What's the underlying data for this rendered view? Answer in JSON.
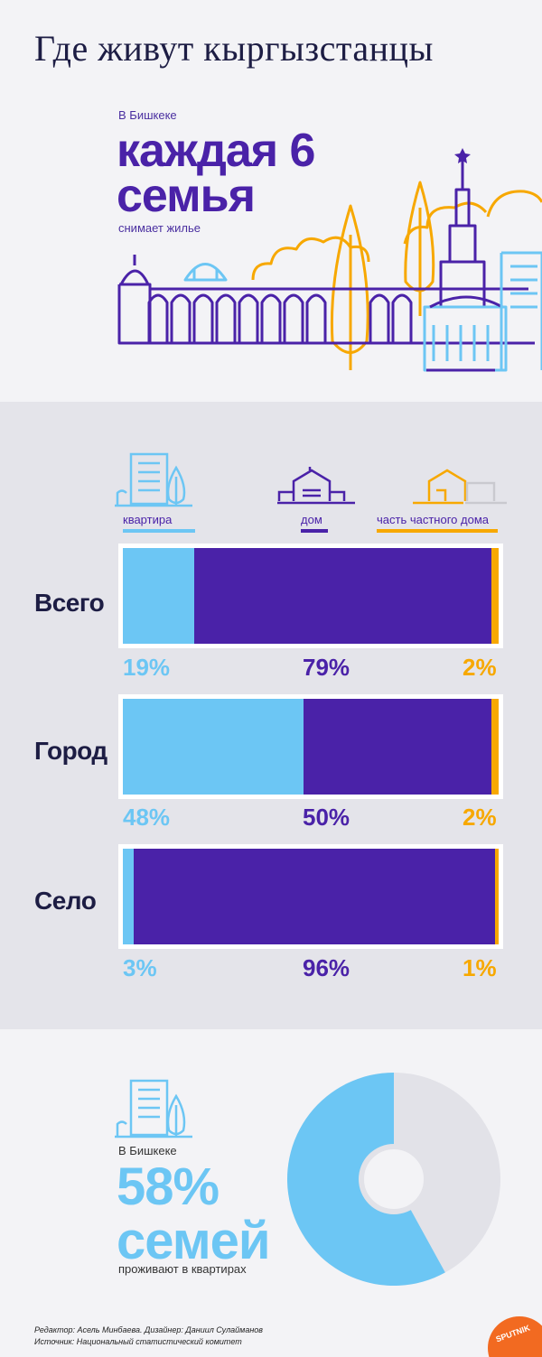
{
  "title": "Где живут кыргызстанцы",
  "hero": {
    "top_line": "В Бишкеке",
    "big_line1": "каждая 6",
    "big_line2": "семья",
    "bottom_line": "снимает жилье"
  },
  "colors": {
    "apartment": "#6cc6f4",
    "house": "#4a22a8",
    "part_house": "#f7a800",
    "pie_rest": "#e2e2e8",
    "dark_text": "#1d1d44"
  },
  "legend": {
    "apartment": "квартира",
    "house": "дом",
    "part_house": "часть частного дома"
  },
  "chart_data": {
    "type": "bar",
    "stacked": true,
    "orientation": "horizontal",
    "categories": [
      "Всего",
      "Город",
      "Село"
    ],
    "series": [
      {
        "name": "квартира",
        "values": [
          19,
          48,
          3
        ],
        "labels": [
          "19%",
          "48%",
          "3%"
        ]
      },
      {
        "name": "дом",
        "values": [
          79,
          50,
          96
        ],
        "labels": [
          "79%",
          "50%",
          "96%"
        ]
      },
      {
        "name": "часть частного дома",
        "values": [
          2,
          2,
          1
        ],
        "labels": [
          "2%",
          "2%",
          "1%"
        ]
      }
    ],
    "unit": "%"
  },
  "pie": {
    "type": "pie",
    "value": 58,
    "rest": 42
  },
  "bottom": {
    "top_line": "В Бишкеке",
    "big_line1": "58%",
    "big_line2": "семей",
    "bottom_line": "проживают в квартирах"
  },
  "footer": {
    "line1": "Редактор: Асель Минбаева. Дизайнер: Даниил Сулайманов",
    "line2": "Источник: Национальный статистический комитет"
  },
  "logo_text": "SPUTNIK"
}
